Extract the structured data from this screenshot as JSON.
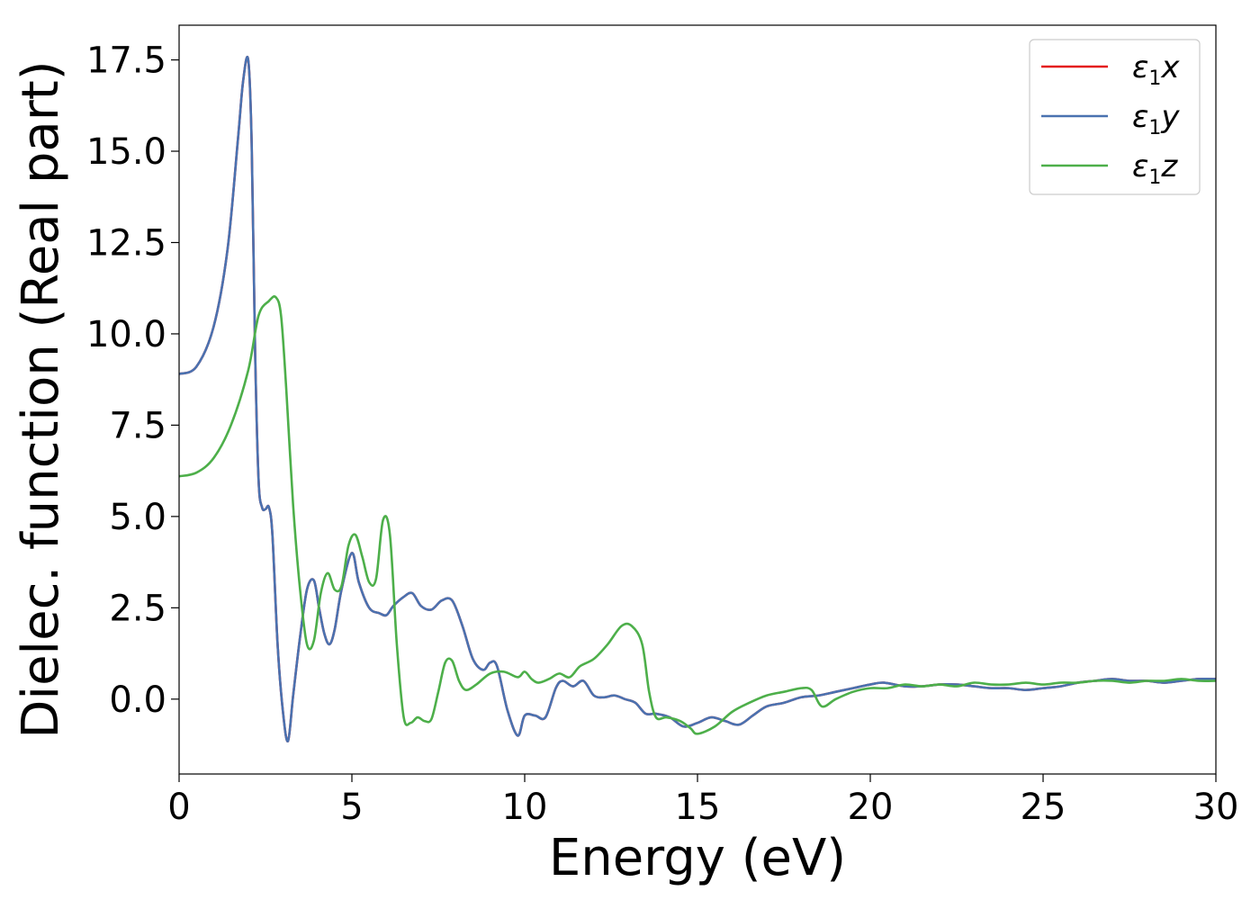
{
  "chart_data": {
    "type": "line",
    "title": "",
    "xlabel": "Energy (eV)",
    "ylabel": "Dielec. function (Real part)",
    "xlim": [
      0,
      30
    ],
    "ylim": [
      -2.05,
      18.45
    ],
    "xticks": [
      0,
      5,
      10,
      15,
      20,
      25,
      30
    ],
    "xtick_labels": [
      "0",
      "5",
      "10",
      "15",
      "20",
      "25",
      "30"
    ],
    "yticks": [
      0,
      2.5,
      5,
      7.5,
      10,
      12.5,
      15,
      17.5
    ],
    "ytick_labels": [
      "0.0",
      "2.5",
      "5.0",
      "7.5",
      "10.0",
      "12.5",
      "15.0",
      "17.5"
    ],
    "grid": false,
    "legend_position": "top-right",
    "series": [
      {
        "name": "ε1x",
        "legend_base": "ε",
        "legend_sub": "1",
        "legend_tail": "x",
        "color": "#e41a1c",
        "x": [
          0,
          0.5,
          1.0,
          1.4,
          1.7,
          1.85,
          2.0,
          2.1,
          2.2,
          2.3,
          2.4,
          2.5,
          2.6,
          2.7,
          2.85,
          3.0,
          3.15,
          3.3,
          3.5,
          3.7,
          3.9,
          4.05,
          4.2,
          4.35,
          4.5,
          4.7,
          5.0,
          5.2,
          5.5,
          5.8,
          6.0,
          6.2,
          6.5,
          6.75,
          7.0,
          7.3,
          7.6,
          7.9,
          8.2,
          8.5,
          8.8,
          9.0,
          9.2,
          9.5,
          9.8,
          10.0,
          10.3,
          10.6,
          10.9,
          11.1,
          11.4,
          11.7,
          12.0,
          12.3,
          12.6,
          12.9,
          13.2,
          13.5,
          13.8,
          14.2,
          14.6,
          15.0,
          15.4,
          15.8,
          16.2,
          16.6,
          17.0,
          17.5,
          18.0,
          18.5,
          19.0,
          19.5,
          20.0,
          20.4,
          21.0,
          21.5,
          22.0,
          22.5,
          23.0,
          23.5,
          24.0,
          24.5,
          25.0,
          25.5,
          26.0,
          26.5,
          27.0,
          27.5,
          28.0,
          28.5,
          29.0,
          29.5,
          30.0
        ],
        "y": [
          8.9,
          9.1,
          10.2,
          12.3,
          15.3,
          16.9,
          17.5,
          15.2,
          9.5,
          6.0,
          5.25,
          5.2,
          5.25,
          4.5,
          1.5,
          -0.3,
          -1.15,
          0.1,
          1.7,
          3.0,
          3.25,
          2.5,
          1.8,
          1.5,
          1.9,
          3.0,
          4.0,
          3.2,
          2.5,
          2.35,
          2.3,
          2.55,
          2.8,
          2.9,
          2.55,
          2.45,
          2.7,
          2.7,
          2.0,
          1.1,
          0.8,
          1.0,
          0.9,
          -0.3,
          -1.0,
          -0.45,
          -0.45,
          -0.5,
          0.3,
          0.5,
          0.35,
          0.5,
          0.1,
          0.05,
          0.1,
          0.0,
          -0.1,
          -0.4,
          -0.4,
          -0.5,
          -0.75,
          -0.65,
          -0.5,
          -0.6,
          -0.7,
          -0.45,
          -0.2,
          -0.1,
          0.05,
          0.1,
          0.2,
          0.3,
          0.4,
          0.45,
          0.35,
          0.35,
          0.4,
          0.4,
          0.35,
          0.3,
          0.3,
          0.25,
          0.3,
          0.35,
          0.45,
          0.5,
          0.55,
          0.5,
          0.5,
          0.45,
          0.5,
          0.55,
          0.55
        ]
      },
      {
        "name": "ε1y",
        "legend_base": "ε",
        "legend_sub": "1",
        "legend_tail": "y",
        "color": "#4a72b0",
        "x": [
          0,
          0.5,
          1.0,
          1.4,
          1.7,
          1.85,
          2.0,
          2.1,
          2.2,
          2.3,
          2.4,
          2.5,
          2.6,
          2.7,
          2.85,
          3.0,
          3.15,
          3.3,
          3.5,
          3.7,
          3.9,
          4.05,
          4.2,
          4.35,
          4.5,
          4.7,
          5.0,
          5.2,
          5.5,
          5.8,
          6.0,
          6.2,
          6.5,
          6.75,
          7.0,
          7.3,
          7.6,
          7.9,
          8.2,
          8.5,
          8.8,
          9.0,
          9.2,
          9.5,
          9.8,
          10.0,
          10.3,
          10.6,
          10.9,
          11.1,
          11.4,
          11.7,
          12.0,
          12.3,
          12.6,
          12.9,
          13.2,
          13.5,
          13.8,
          14.2,
          14.6,
          15.0,
          15.4,
          15.8,
          16.2,
          16.6,
          17.0,
          17.5,
          18.0,
          18.5,
          19.0,
          19.5,
          20.0,
          20.4,
          21.0,
          21.5,
          22.0,
          22.5,
          23.0,
          23.5,
          24.0,
          24.5,
          25.0,
          25.5,
          26.0,
          26.5,
          27.0,
          27.5,
          28.0,
          28.5,
          29.0,
          29.5,
          30.0
        ],
        "y": [
          8.9,
          9.1,
          10.2,
          12.3,
          15.3,
          16.9,
          17.5,
          15.2,
          9.5,
          6.0,
          5.25,
          5.2,
          5.25,
          4.5,
          1.5,
          -0.3,
          -1.15,
          0.1,
          1.7,
          3.0,
          3.25,
          2.5,
          1.8,
          1.5,
          1.9,
          3.0,
          4.0,
          3.2,
          2.5,
          2.35,
          2.3,
          2.55,
          2.8,
          2.9,
          2.55,
          2.45,
          2.7,
          2.7,
          2.0,
          1.1,
          0.8,
          1.0,
          0.9,
          -0.3,
          -1.0,
          -0.45,
          -0.45,
          -0.5,
          0.3,
          0.5,
          0.35,
          0.5,
          0.1,
          0.05,
          0.1,
          0.0,
          -0.1,
          -0.4,
          -0.4,
          -0.5,
          -0.75,
          -0.65,
          -0.5,
          -0.6,
          -0.7,
          -0.45,
          -0.2,
          -0.1,
          0.05,
          0.1,
          0.2,
          0.3,
          0.4,
          0.45,
          0.35,
          0.35,
          0.4,
          0.4,
          0.35,
          0.3,
          0.3,
          0.25,
          0.3,
          0.35,
          0.45,
          0.5,
          0.55,
          0.5,
          0.5,
          0.45,
          0.5,
          0.55,
          0.55
        ]
      },
      {
        "name": "ε1z",
        "legend_base": "ε",
        "legend_sub": "1",
        "legend_tail": "z",
        "color": "#4daf4a",
        "x": [
          0,
          0.5,
          1.0,
          1.5,
          2.0,
          2.3,
          2.6,
          2.8,
          2.95,
          3.1,
          3.3,
          3.5,
          3.7,
          3.9,
          4.1,
          4.3,
          4.5,
          4.7,
          4.9,
          5.1,
          5.3,
          5.5,
          5.7,
          5.9,
          6.1,
          6.3,
          6.5,
          6.7,
          6.9,
          7.1,
          7.3,
          7.5,
          7.7,
          7.9,
          8.1,
          8.3,
          8.6,
          9.0,
          9.4,
          9.8,
          10.0,
          10.2,
          10.4,
          10.7,
          11.0,
          11.3,
          11.6,
          12.0,
          12.4,
          12.8,
          13.1,
          13.4,
          13.6,
          13.8,
          14.1,
          14.5,
          14.8,
          15.0,
          15.5,
          16.0,
          16.5,
          17.0,
          17.5,
          18.0,
          18.3,
          18.6,
          19.0,
          19.5,
          20.0,
          20.5,
          21.0,
          21.5,
          22.0,
          22.5,
          23.0,
          23.5,
          24.0,
          24.5,
          25.0,
          25.5,
          26.0,
          26.5,
          27.0,
          27.5,
          28.0,
          28.5,
          29.0,
          29.5,
          30.0
        ],
        "y": [
          6.1,
          6.2,
          6.6,
          7.5,
          9.0,
          10.5,
          10.9,
          11.0,
          10.5,
          8.5,
          5.3,
          3.0,
          1.5,
          1.6,
          2.9,
          3.45,
          3.0,
          3.1,
          4.2,
          4.5,
          3.9,
          3.2,
          3.3,
          4.9,
          4.5,
          1.5,
          -0.5,
          -0.65,
          -0.5,
          -0.6,
          -0.55,
          0.2,
          1.0,
          1.05,
          0.5,
          0.25,
          0.4,
          0.7,
          0.75,
          0.6,
          0.75,
          0.55,
          0.45,
          0.55,
          0.7,
          0.6,
          0.9,
          1.1,
          1.5,
          2.0,
          2.0,
          1.5,
          0.2,
          -0.5,
          -0.5,
          -0.6,
          -0.8,
          -0.95,
          -0.75,
          -0.35,
          -0.1,
          0.1,
          0.2,
          0.3,
          0.25,
          -0.2,
          0.0,
          0.2,
          0.3,
          0.3,
          0.4,
          0.35,
          0.4,
          0.35,
          0.45,
          0.4,
          0.4,
          0.45,
          0.4,
          0.45,
          0.45,
          0.5,
          0.5,
          0.45,
          0.5,
          0.5,
          0.55,
          0.5,
          0.5
        ]
      }
    ]
  }
}
